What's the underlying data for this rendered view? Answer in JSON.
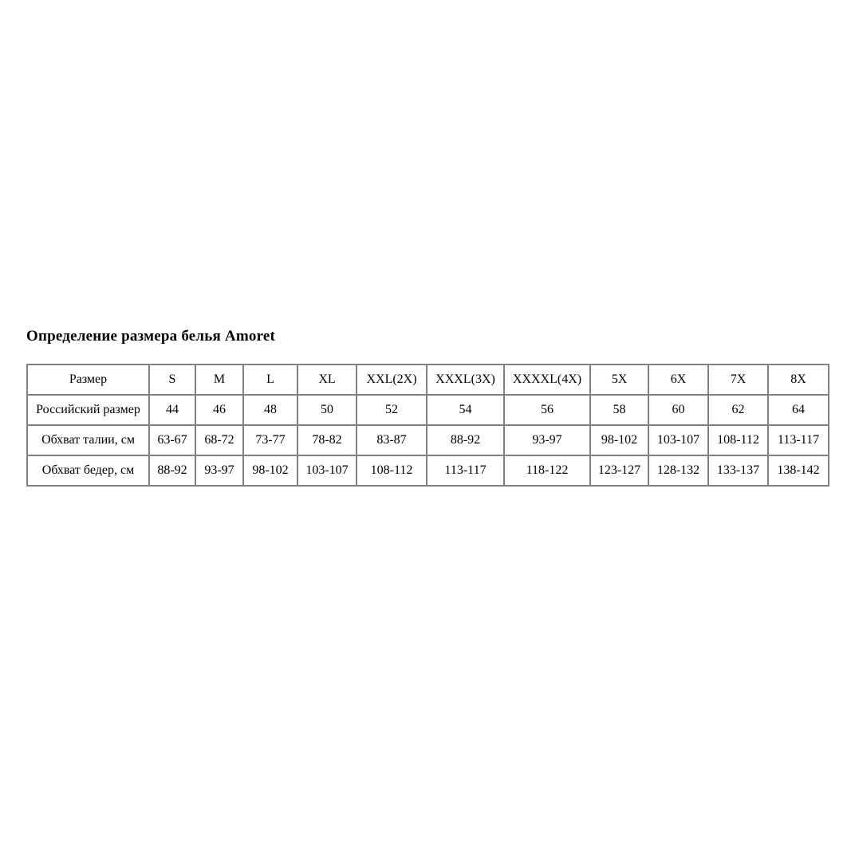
{
  "page": {
    "title": "Определение размера белья Amoret"
  },
  "table": {
    "rows": [
      {
        "header": "Размер",
        "values": [
          "S",
          "M",
          "L",
          "XL",
          "XXL(2X)",
          "XXXL(3X)",
          "XXXXL(4X)",
          "5X",
          "6X",
          "7X",
          "8X"
        ]
      },
      {
        "header": "Российский размер",
        "values": [
          "44",
          "46",
          "48",
          "50",
          "52",
          "54",
          "56",
          "58",
          "60",
          "62",
          "64"
        ]
      },
      {
        "header": "Обхват талии, см",
        "values": [
          "63-67",
          "68-72",
          "73-77",
          "78-82",
          "83-87",
          "88-92",
          "93-97",
          "98-102",
          "103-107",
          "108-112",
          "113-117"
        ]
      },
      {
        "header": "Обхват бедер, см",
        "values": [
          "88-92",
          "93-97",
          "98-102",
          "103-107",
          "108-112",
          "113-117",
          "118-122",
          "123-127",
          "128-132",
          "133-137",
          "138-142"
        ]
      }
    ]
  },
  "colors": {
    "table_border": "#808080",
    "text": "#000000",
    "background": "#ffffff"
  }
}
